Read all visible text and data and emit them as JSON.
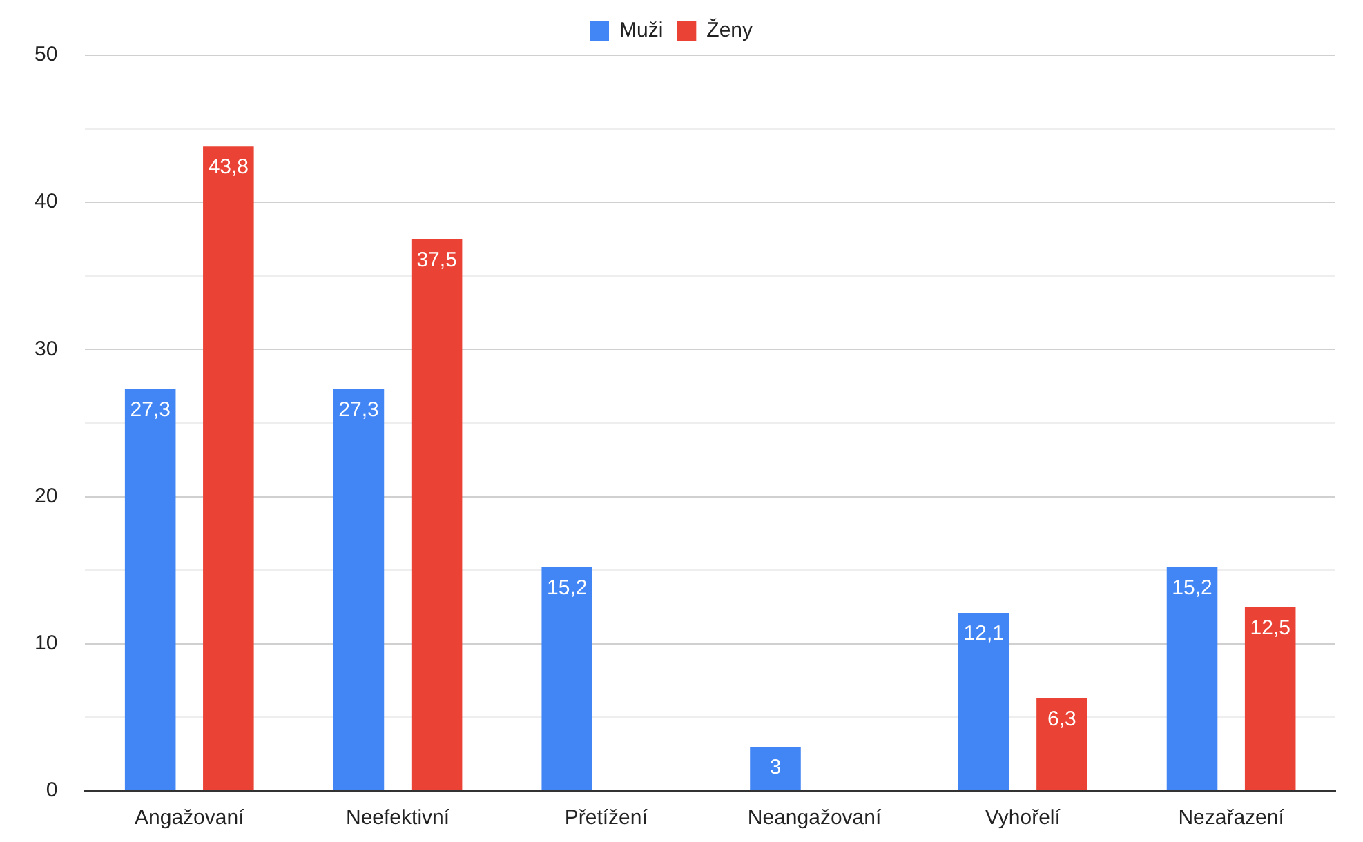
{
  "chart_data": {
    "type": "bar",
    "categories": [
      "Angažovaní",
      "Neefektivní",
      "Přetížení",
      "Neangažovaní",
      "Vyhořelí",
      "Nezařazení"
    ],
    "series": [
      {
        "name": "Muži",
        "color": "#4285f4",
        "values": [
          27.3,
          27.3,
          15.2,
          3,
          12.1,
          15.2
        ],
        "value_labels": [
          "27,3",
          "27,3",
          "15,2",
          "3",
          "12,1",
          "15,2"
        ]
      },
      {
        "name": "Ženy",
        "color": "#ea4335",
        "values": [
          43.8,
          37.5,
          null,
          null,
          6.3,
          12.5
        ],
        "value_labels": [
          "43,8",
          "37,5",
          null,
          null,
          "6,3",
          "12,5"
        ]
      }
    ],
    "ylim": [
      0,
      50
    ],
    "yticks": [
      0,
      {
        "value": 5,
        "label": null
      },
      10,
      {
        "value": 15,
        "label": null
      },
      20,
      {
        "value": 25,
        "label": null
      },
      30,
      {
        "value": 35,
        "label": null
      },
      40,
      {
        "value": 45,
        "label": null
      },
      50
    ],
    "grid": "y",
    "legend": "top"
  }
}
